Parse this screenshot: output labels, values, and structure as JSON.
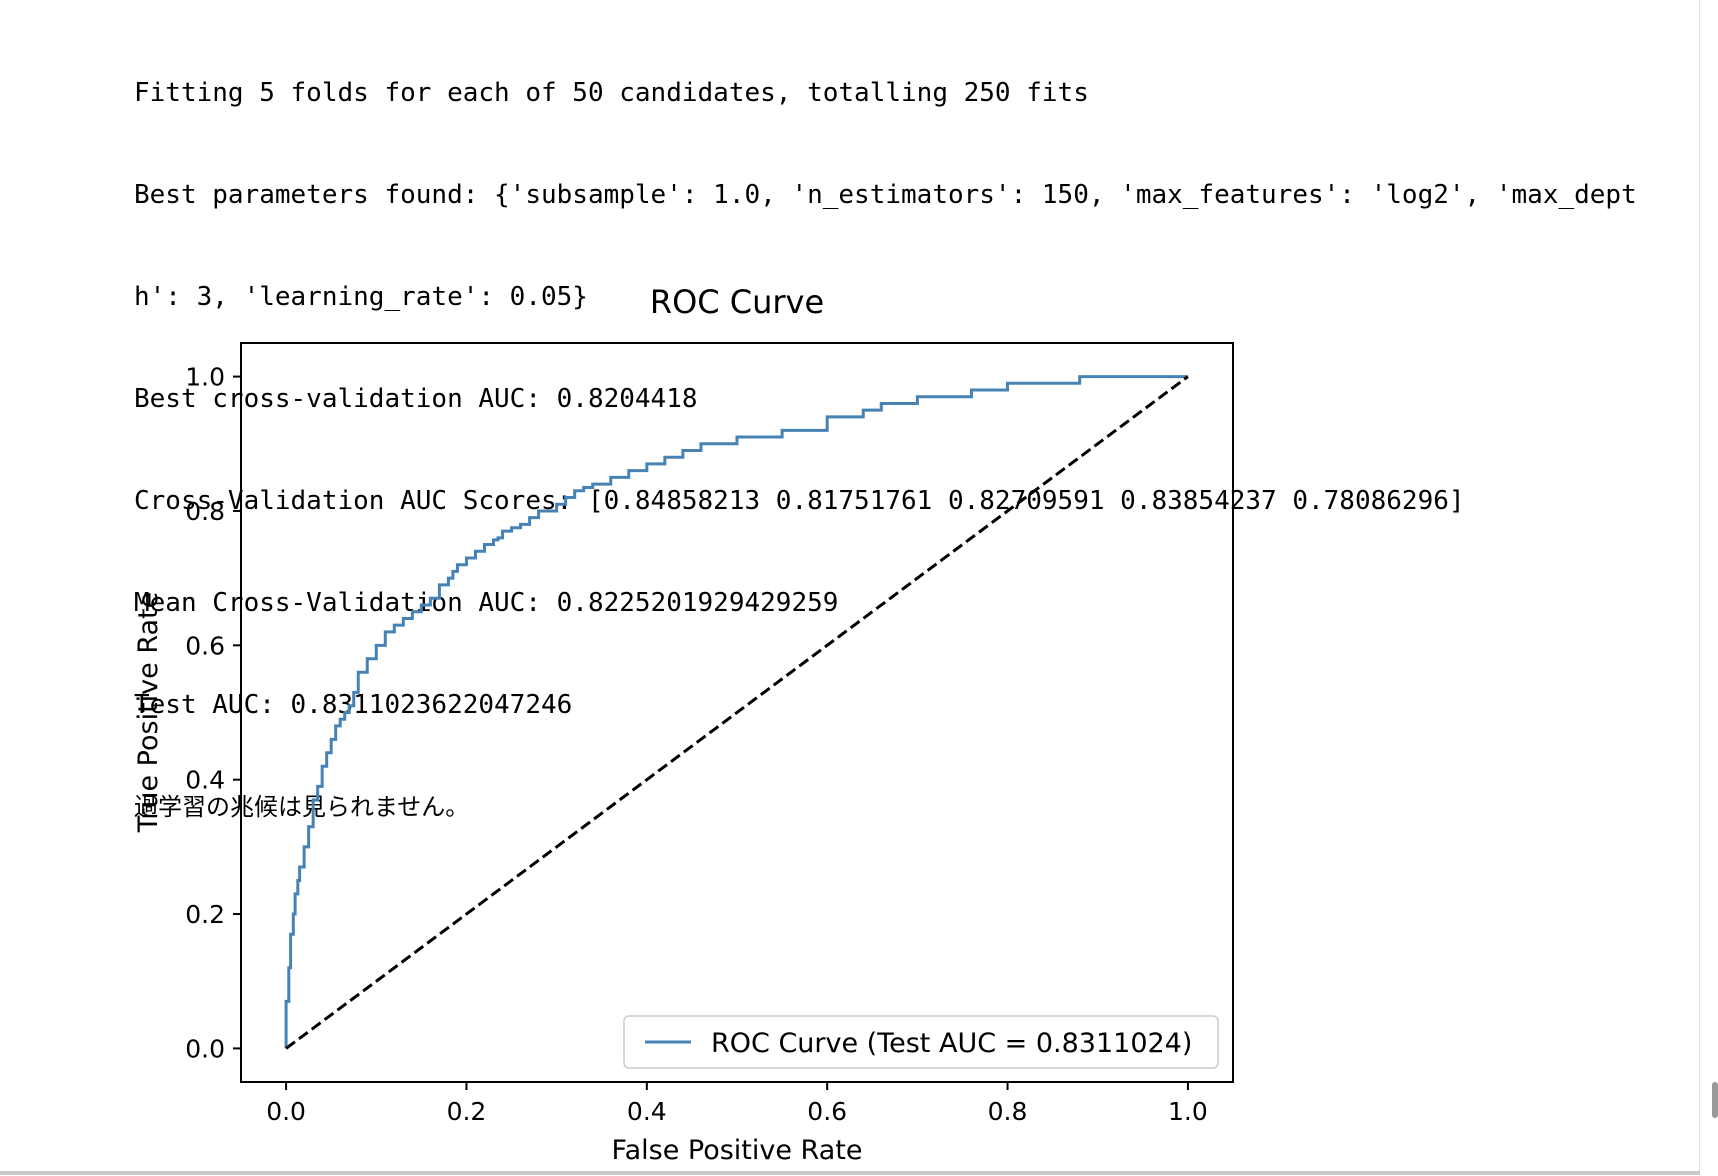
{
  "output": {
    "lines": [
      "Fitting 5 folds for each of 50 candidates, totalling 250 fits",
      "Best parameters found: {'subsample': 1.0, 'n_estimators': 150, 'max_features': 'log2', 'max_dept",
      "h': 3, 'learning_rate': 0.05}",
      "Best cross-validation AUC: 0.8204418",
      "Cross-Validation AUC Scores: [0.84858213 0.81751761 0.82709591 0.83854237 0.78086296]",
      "Mean Cross-Validation AUC: 0.8225201929429259",
      "Test AUC: 0.8311023622047246",
      "過学習の兆候は見られません。"
    ]
  },
  "chart_data": {
    "type": "line",
    "title": "ROC Curve",
    "xlabel": "False Positive Rate",
    "ylabel": "True Positive Rate",
    "xlim": [
      -0.05,
      1.05
    ],
    "ylim": [
      -0.05,
      1.05
    ],
    "xticks": [
      "0.0",
      "0.2",
      "0.4",
      "0.6",
      "0.8",
      "1.0"
    ],
    "yticks": [
      "0.0",
      "0.2",
      "0.4",
      "0.6",
      "0.8",
      "1.0"
    ],
    "grid": false,
    "legend_position": "lower right",
    "series": [
      {
        "name": "ROC Curve (Test AUC = 0.8311024)",
        "color": "#4682b4",
        "style": "steps",
        "x": [
          0.0,
          0.0,
          0.003,
          0.005,
          0.008,
          0.01,
          0.013,
          0.015,
          0.02,
          0.025,
          0.03,
          0.035,
          0.04,
          0.045,
          0.05,
          0.055,
          0.06,
          0.065,
          0.07,
          0.075,
          0.08,
          0.09,
          0.1,
          0.11,
          0.12,
          0.13,
          0.14,
          0.15,
          0.16,
          0.17,
          0.18,
          0.185,
          0.19,
          0.2,
          0.21,
          0.22,
          0.23,
          0.235,
          0.24,
          0.25,
          0.26,
          0.27,
          0.28,
          0.3,
          0.31,
          0.32,
          0.33,
          0.34,
          0.36,
          0.38,
          0.4,
          0.42,
          0.44,
          0.46,
          0.5,
          0.55,
          0.6,
          0.64,
          0.66,
          0.7,
          0.76,
          0.8,
          0.88,
          1.0
        ],
        "y": [
          0.0,
          0.07,
          0.12,
          0.17,
          0.2,
          0.23,
          0.25,
          0.27,
          0.3,
          0.33,
          0.37,
          0.39,
          0.42,
          0.44,
          0.46,
          0.48,
          0.49,
          0.5,
          0.51,
          0.53,
          0.56,
          0.58,
          0.6,
          0.62,
          0.63,
          0.64,
          0.65,
          0.66,
          0.67,
          0.69,
          0.7,
          0.71,
          0.72,
          0.73,
          0.74,
          0.75,
          0.757,
          0.76,
          0.77,
          0.775,
          0.78,
          0.79,
          0.8,
          0.81,
          0.82,
          0.83,
          0.835,
          0.84,
          0.85,
          0.86,
          0.87,
          0.88,
          0.89,
          0.9,
          0.91,
          0.92,
          0.94,
          0.95,
          0.96,
          0.97,
          0.98,
          0.99,
          1.0,
          1.0
        ]
      },
      {
        "name": "",
        "color": "#000000",
        "style": "dashed",
        "x": [
          0.0,
          1.0
        ],
        "y": [
          0.0,
          1.0
        ]
      }
    ]
  }
}
